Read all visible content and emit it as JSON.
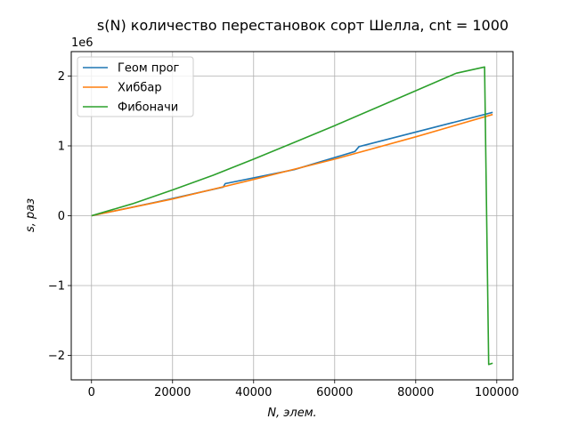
{
  "chart_data": {
    "type": "line",
    "title": "s(N) количество перестановок сорт Шелла, cnt = 1000",
    "xlabel": "N, элем.",
    "ylabel": "s, раз",
    "y_offset_label": "1e6",
    "xlim": [
      -5000,
      104000
    ],
    "ylim": [
      -2.35,
      2.35
    ],
    "y_scale": 1000000,
    "grid": true,
    "legend_position": "top-left",
    "x_ticks": [
      {
        "value": 0,
        "label": "0"
      },
      {
        "value": 20000,
        "label": "20000"
      },
      {
        "value": 40000,
        "label": "40000"
      },
      {
        "value": 60000,
        "label": "60000"
      },
      {
        "value": 80000,
        "label": "80000"
      },
      {
        "value": 100000,
        "label": "100000"
      }
    ],
    "y_ticks": [
      {
        "value": -2,
        "label": "−2"
      },
      {
        "value": -1,
        "label": "−1"
      },
      {
        "value": 0,
        "label": "0"
      },
      {
        "value": 1,
        "label": "1"
      },
      {
        "value": 2,
        "label": "2"
      }
    ],
    "series": [
      {
        "name": "Геом прог",
        "color": "#1f77b4",
        "points": [
          [
            0,
            0
          ],
          [
            16383,
            0.2
          ],
          [
            32500,
            0.41
          ],
          [
            33000,
            0.46
          ],
          [
            50000,
            0.66
          ],
          [
            65000,
            0.92
          ],
          [
            66000,
            0.99
          ],
          [
            99000,
            1.48
          ]
        ]
      },
      {
        "name": "Хиббар",
        "color": "#ff7f0e",
        "points": [
          [
            0,
            0
          ],
          [
            20000,
            0.24
          ],
          [
            40000,
            0.52
          ],
          [
            60000,
            0.81
          ],
          [
            80000,
            1.13
          ],
          [
            99000,
            1.45
          ]
        ]
      },
      {
        "name": "Фибоначи",
        "color": "#2ca02c",
        "points": [
          [
            0,
            0
          ],
          [
            10000,
            0.17
          ],
          [
            20000,
            0.37
          ],
          [
            30000,
            0.58
          ],
          [
            40000,
            0.81
          ],
          [
            50000,
            1.05
          ],
          [
            60000,
            1.29
          ],
          [
            70000,
            1.54
          ],
          [
            80000,
            1.79
          ],
          [
            90000,
            2.04
          ],
          [
            97000,
            2.13
          ],
          [
            98000,
            -2.13
          ],
          [
            99000,
            -2.11
          ]
        ]
      }
    ]
  }
}
